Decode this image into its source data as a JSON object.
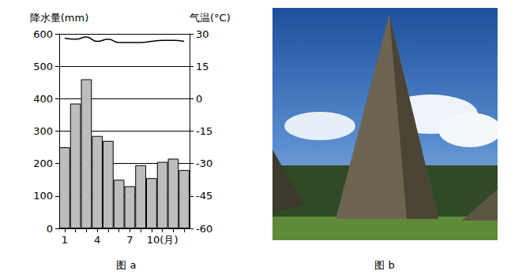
{
  "chart_data": {
    "type": "bar",
    "caption": "图 a",
    "categories": [
      "1",
      null,
      null,
      "4",
      null,
      null,
      "7",
      null,
      null,
      "10(月)",
      null,
      null
    ],
    "series": [
      {
        "type": "bar",
        "color": "#bdbdbd",
        "values": [
          250,
          385,
          460,
          285,
          270,
          150,
          130,
          195,
          155,
          205,
          215,
          180
        ]
      },
      {
        "type": "line",
        "color": "#000000",
        "axis": "y2",
        "values": [
          28,
          27.5,
          28.5,
          26.5,
          27.5,
          26,
          26,
          26,
          26.5,
          27,
          27,
          26.5
        ]
      }
    ],
    "y_label": "降水量(mm)",
    "y2_label": "气温(°C)",
    "ylim": [
      0,
      600
    ],
    "yticks": [
      0,
      100,
      200,
      300,
      400,
      500,
      600
    ],
    "y2lim": [
      -60,
      30
    ],
    "y2ticks": [
      -60,
      -45,
      -30,
      -15,
      0,
      15,
      30
    ],
    "grid": true
  },
  "figure_b": {
    "caption": "图 b"
  }
}
